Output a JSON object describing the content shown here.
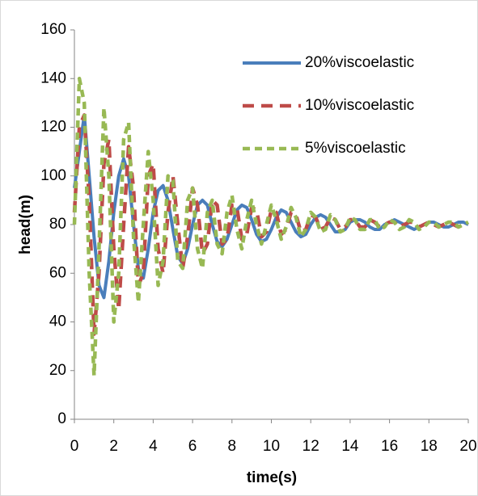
{
  "chart_data": {
    "type": "line",
    "x_label": "time(s)",
    "y_label": "head(m)",
    "x": [
      0,
      0.25,
      0.5,
      0.75,
      1,
      1.25,
      1.5,
      1.75,
      2,
      2.25,
      2.5,
      2.75,
      3,
      3.25,
      3.5,
      3.75,
      4,
      4.25,
      4.5,
      4.75,
      5,
      5.25,
      5.5,
      5.75,
      6,
      6.25,
      6.5,
      6.75,
      7,
      7.25,
      7.5,
      7.75,
      8,
      8.25,
      8.5,
      8.75,
      9,
      9.25,
      9.5,
      9.75,
      10,
      10.25,
      10.5,
      10.75,
      11,
      11.25,
      11.5,
      11.75,
      12,
      12.25,
      12.5,
      12.75,
      13,
      13.25,
      13.5,
      13.75,
      14,
      14.25,
      14.5,
      14.75,
      15,
      15.25,
      15.5,
      15.75,
      16,
      16.25,
      16.5,
      16.75,
      17,
      17.25,
      17.5,
      17.75,
      18,
      18.25,
      18.5,
      18.75,
      19,
      19.25,
      19.5,
      19.75,
      20
    ],
    "series": [
      {
        "name": "20%viscoelastic",
        "color": "#4a7ebb",
        "line_style": "solid",
        "values": [
          95,
          110,
          125,
          100,
          75,
          55,
          50,
          65,
          85,
          100,
          107,
          100,
          80,
          62,
          58,
          70,
          85,
          94,
          96,
          90,
          78,
          67,
          64,
          70,
          80,
          88,
          90,
          88,
          80,
          73,
          71,
          74,
          80,
          86,
          88,
          87,
          82,
          76,
          73,
          74,
          78,
          83,
          86,
          85,
          81,
          77,
          75,
          76,
          80,
          83,
          84,
          83,
          80,
          77,
          77,
          78,
          81,
          82,
          82,
          81,
          79,
          78,
          78,
          80,
          81,
          82,
          81,
          80,
          79,
          78,
          79,
          80,
          81,
          81,
          80,
          79,
          79,
          80,
          81,
          81,
          80
        ]
      },
      {
        "name": "10%viscoelastic",
        "color": "#be4b48",
        "line_style": "dashed",
        "values": [
          85,
          120,
          125,
          90,
          35,
          60,
          105,
          115,
          70,
          45,
          80,
          112,
          95,
          55,
          60,
          100,
          105,
          70,
          60,
          85,
          100,
          80,
          62,
          75,
          95,
          88,
          68,
          72,
          90,
          88,
          72,
          74,
          88,
          87,
          74,
          76,
          87,
          86,
          75,
          77,
          86,
          85,
          76,
          78,
          85,
          84,
          77,
          78,
          84,
          83,
          78,
          79,
          83,
          82,
          78,
          79,
          82,
          82,
          79,
          79,
          82,
          81,
          79,
          80,
          81,
          81,
          79,
          80,
          81,
          81,
          79,
          80,
          81,
          80,
          79,
          80,
          81,
          80,
          79,
          80,
          80
        ]
      },
      {
        "name": "5%viscoelastic",
        "color": "#98b954",
        "line_style": "dashed",
        "values": [
          80,
          140,
          130,
          60,
          18,
          70,
          128,
          100,
          40,
          60,
          115,
          122,
          75,
          48,
          80,
          110,
          90,
          55,
          65,
          100,
          98,
          65,
          62,
          90,
          95,
          70,
          62,
          85,
          90,
          72,
          68,
          85,
          92,
          78,
          70,
          82,
          90,
          80,
          72,
          80,
          88,
          82,
          74,
          79,
          87,
          83,
          75,
          78,
          85,
          83,
          77,
          78,
          84,
          82,
          77,
          78,
          83,
          82,
          78,
          78,
          82,
          82,
          78,
          79,
          82,
          81,
          78,
          79,
          82,
          81,
          78,
          79,
          81,
          81,
          79,
          80,
          81,
          81,
          79,
          80,
          81
        ]
      }
    ],
    "xlim": [
      0,
      20
    ],
    "xticks": [
      0,
      2,
      4,
      6,
      8,
      10,
      12,
      14,
      16,
      18,
      20
    ],
    "ylim": [
      0,
      160
    ],
    "yticks": [
      0,
      20,
      40,
      60,
      80,
      100,
      120,
      140,
      160
    ],
    "grid": false,
    "legend": "upper right"
  }
}
